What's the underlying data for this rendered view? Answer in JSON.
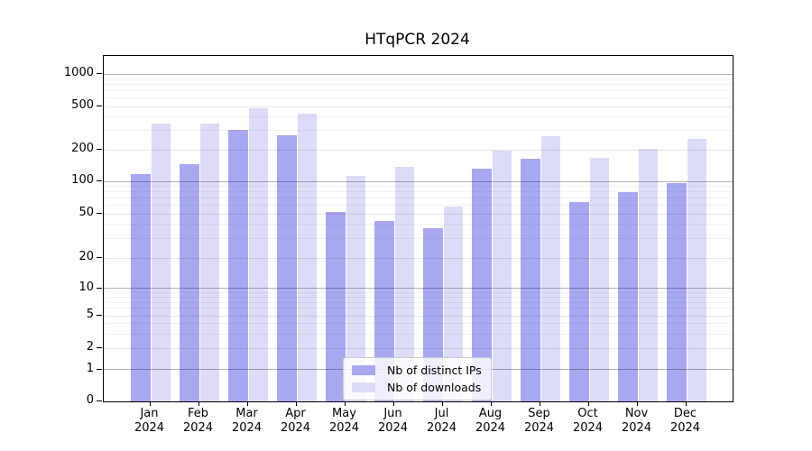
{
  "title": "HTqPCR 2024",
  "chart_data": {
    "type": "bar",
    "title": "HTqPCR 2024",
    "year": "2024",
    "months": [
      "Jan",
      "Feb",
      "Mar",
      "Apr",
      "May",
      "Jun",
      "Jul",
      "Aug",
      "Sep",
      "Oct",
      "Nov",
      "Dec"
    ],
    "series": [
      {
        "name": "Nb of distinct IPs",
        "color": "#a8a8f2",
        "values": [
          118,
          146,
          305,
          270,
          52,
          43,
          37,
          132,
          163,
          64,
          80,
          96
        ]
      },
      {
        "name": "Nb of downloads",
        "color": "#dcdcf8",
        "values": [
          350,
          345,
          480,
          430,
          112,
          138,
          58,
          195,
          265,
          168,
          203,
          250
        ]
      }
    ],
    "y_ticks": [
      0,
      1,
      2,
      5,
      10,
      20,
      50,
      100,
      200,
      500,
      1000
    ],
    "y_scale": "log-like with ticks 0,1,2,5,10,20,50,100,200,500,1000",
    "grid": true,
    "legend_position": "lower-center-inside"
  }
}
